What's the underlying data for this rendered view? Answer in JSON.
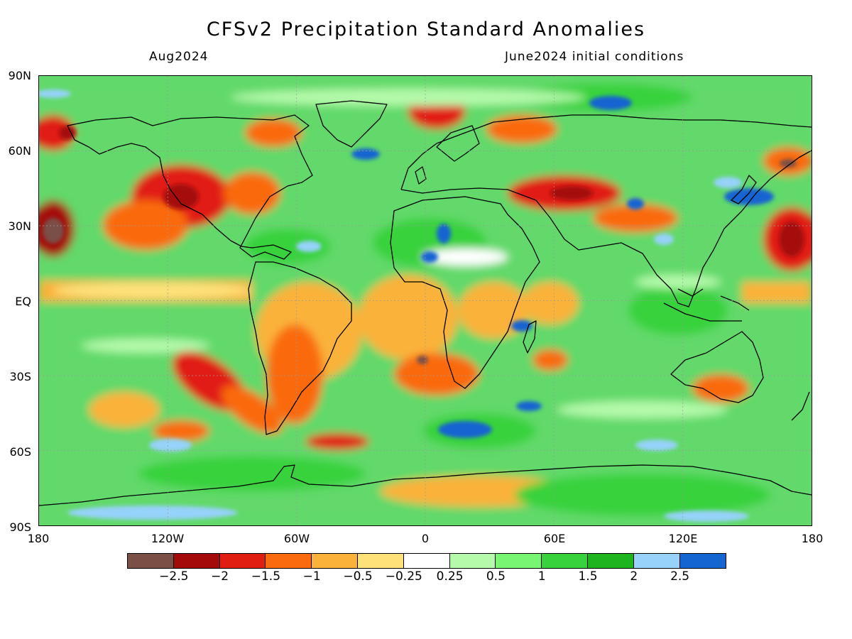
{
  "title": "CFSv2 Precipitation Standard Anomalies",
  "subtitle_left": "Aug2024",
  "subtitle_right": "June2024 initial conditions",
  "lat_labels": [
    "90N",
    "60N",
    "30N",
    "EQ",
    "30S",
    "60S",
    "90S"
  ],
  "lon_labels": [
    "180",
    "120W",
    "60W",
    "0",
    "60E",
    "120E",
    "180"
  ],
  "colorbar": {
    "colors": [
      "#7a5046",
      "#a50a0a",
      "#e11e12",
      "#fa6a0e",
      "#fab23a",
      "#fde27a",
      "#ffffff",
      "#b4faaa",
      "#78f573",
      "#37d23c",
      "#1eb41e",
      "#96d2fa",
      "#1464d2"
    ],
    "tick_labels": [
      "−2.5",
      "−2",
      "−1.5",
      "−1",
      "−0.5",
      "−0.25",
      "0.25",
      "0.5",
      "1",
      "1.5",
      "2",
      "2.5"
    ]
  }
}
